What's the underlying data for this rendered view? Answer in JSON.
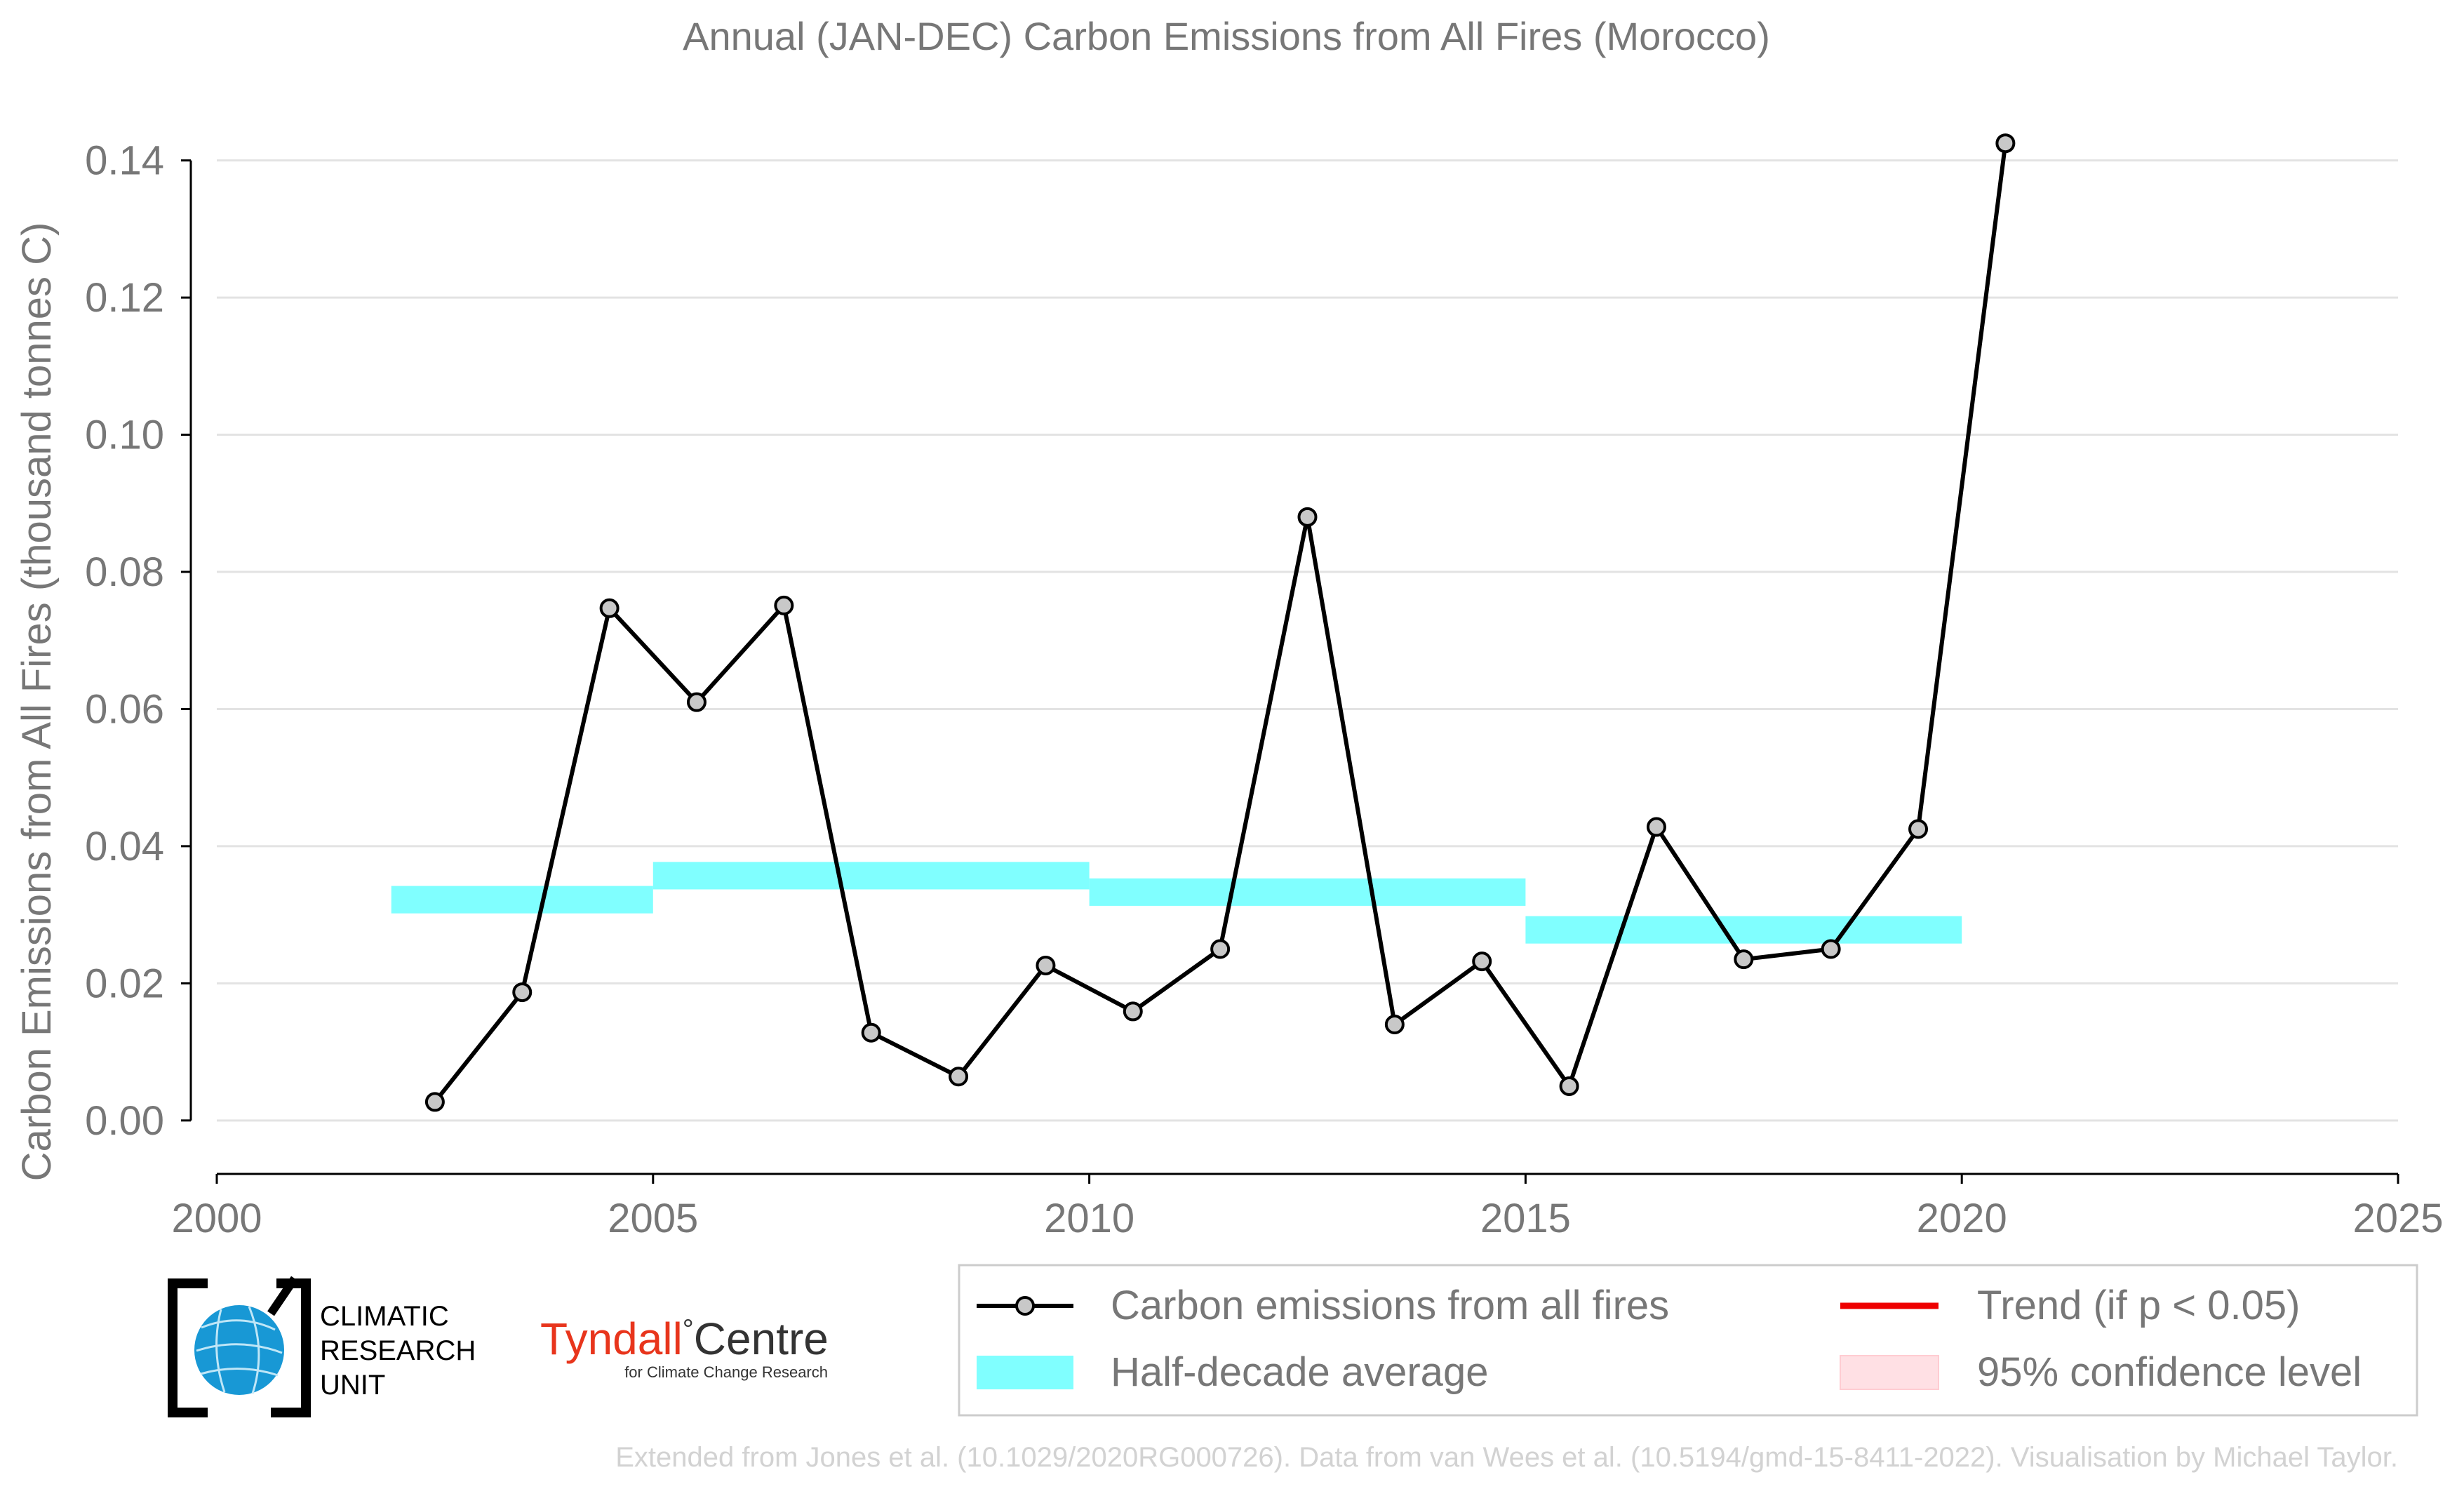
{
  "chart_data": {
    "type": "line",
    "title": "Annual (JAN-DEC) Carbon Emissions from All Fires (Morocco)",
    "xlabel": "",
    "ylabel": "Carbon Emissions from All Fires (thousand tonnes C)",
    "xlim": [
      2000,
      2025
    ],
    "ylim": [
      -0.008,
      0.146
    ],
    "x_ticks": [
      2000,
      2005,
      2010,
      2015,
      2020,
      2025
    ],
    "x_tick_labels": [
      "2000",
      "2005",
      "2010",
      "2015",
      "2020",
      "2025"
    ],
    "y_ticks": [
      0.0,
      0.02,
      0.04,
      0.06,
      0.08,
      0.1,
      0.12,
      0.14
    ],
    "y_tick_labels": [
      "0.00",
      "0.02",
      "0.04",
      "0.06",
      "0.08",
      "0.10",
      "0.12",
      "0.14"
    ],
    "grid": "horizontal",
    "series": [
      {
        "name": "Carbon emissions from all fires",
        "kind": "line-markers",
        "color": "#000000",
        "marker_fill": "#c8c8c8",
        "x": [
          2002.5,
          2003.5,
          2004.5,
          2005.5,
          2006.5,
          2007.5,
          2008.5,
          2009.5,
          2010.5,
          2011.5,
          2012.5,
          2013.5,
          2014.5,
          2015.5,
          2016.5,
          2017.5,
          2018.5,
          2019.5,
          2020.5
        ],
        "y": [
          0.0027,
          0.0187,
          0.0747,
          0.061,
          0.0751,
          0.0128,
          0.0064,
          0.0226,
          0.0159,
          0.025,
          0.088,
          0.014,
          0.0232,
          0.005,
          0.0428,
          0.0235,
          0.025,
          0.0425,
          0.1425
        ]
      },
      {
        "name": "Half-decade average",
        "kind": "band",
        "color": "#80ffff",
        "segments": [
          {
            "x0": 2002,
            "x1": 2005,
            "y": 0.0322
          },
          {
            "x0": 2005,
            "x1": 2010,
            "y": 0.0357
          },
          {
            "x0": 2010,
            "x1": 2015,
            "y": 0.0333
          },
          {
            "x0": 2015,
            "x1": 2020,
            "y": 0.0278
          }
        ]
      }
    ],
    "legend": {
      "placement": "bottom-right",
      "entries": [
        {
          "label": "Carbon emissions from all fires",
          "symbol": "line-marker",
          "color": "#000000"
        },
        {
          "label": "Trend (if p < 0.05)",
          "symbol": "line",
          "color": "#ee0000"
        },
        {
          "label": "Half-decade average",
          "symbol": "patch",
          "color": "#80ffff"
        },
        {
          "label": "95% confidence level",
          "symbol": "patch",
          "color": "#ffe0e4"
        }
      ]
    }
  },
  "logos": {
    "cru": {
      "line1": "CLIMATIC",
      "line2": "RESEARCH",
      "line3": "UNIT"
    },
    "tyndall": {
      "name1": "Tyndall",
      "degree": "°",
      "name2": "Centre",
      "sub": "for Climate Change Research"
    }
  },
  "credit": "Extended from Jones et al. (10.1029/2020RG000726). Data from van Wees et al. (10.5194/gmd-15-8411-2022). Visualisation by Michael Taylor."
}
